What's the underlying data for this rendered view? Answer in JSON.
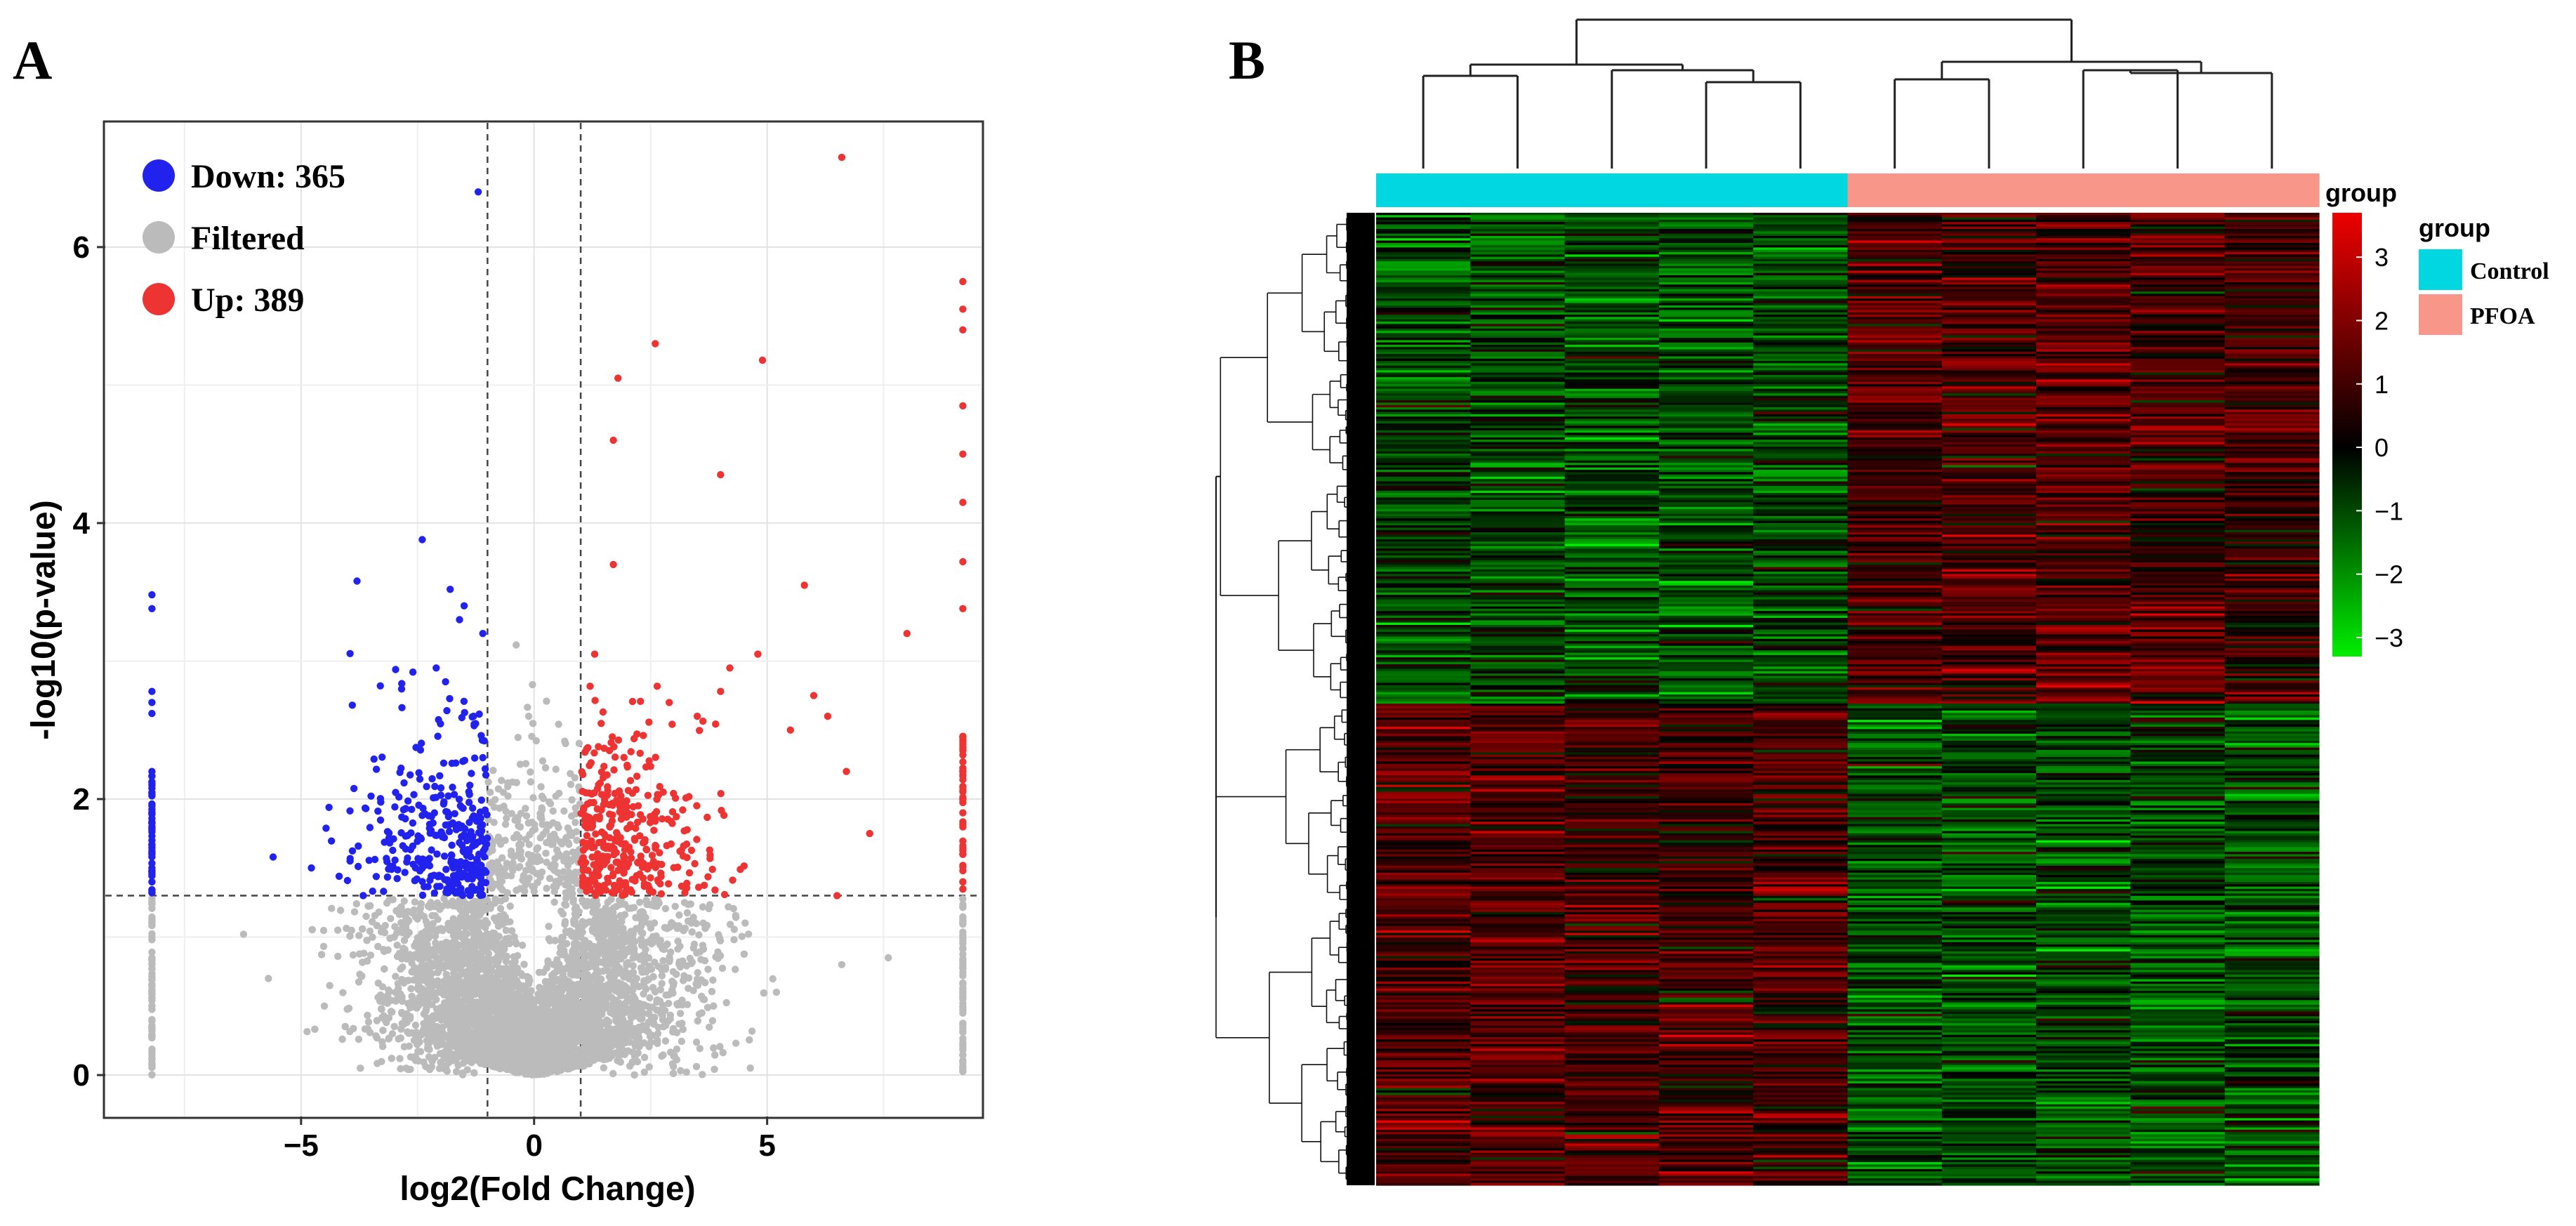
{
  "panel_a": {
    "letter": "A",
    "chart_data": {
      "type": "scatter",
      "title": "",
      "xlabel": "log2(Fold Change)",
      "ylabel": "-log10(p-value)",
      "xlim": [
        -9.2,
        9.6
      ],
      "ylim": [
        -0.3,
        6.9
      ],
      "xticks": [
        -5,
        0,
        5
      ],
      "xtick_labels": [
        "−5",
        "0",
        "5"
      ],
      "yticks": [
        0,
        2,
        4,
        6
      ],
      "ytick_labels": [
        "0",
        "2",
        "4",
        "6"
      ],
      "grid": true,
      "fold_change_thresholds": [
        -1,
        1
      ],
      "pvalue_threshold": 1.3,
      "legend_position": "top-left",
      "legend": [
        {
          "key": "down",
          "label": "Down: 365",
          "color": "#2222ee"
        },
        {
          "key": "filtered",
          "label": "Filtered",
          "color": "#bbbbbb"
        },
        {
          "key": "up",
          "label": "Up: 389",
          "color": "#ee3333"
        }
      ],
      "series": [
        {
          "name": "Down: 365",
          "color": "#2222ee",
          "points": [
            [
              -8.2,
              3.48
            ],
            [
              -8.2,
              3.38
            ],
            [
              -8.2,
              2.78
            ],
            [
              -8.2,
              2.7
            ],
            [
              -8.2,
              2.62
            ],
            [
              -8.2,
              2.2
            ],
            [
              -8.2,
              2.1
            ],
            [
              -8.2,
              1.95
            ],
            [
              -8.2,
              1.8
            ],
            [
              -8.2,
              1.7
            ],
            [
              -8.2,
              1.6
            ],
            [
              -8.2,
              1.5
            ],
            [
              -8.2,
              1.4
            ],
            [
              -8.2,
              1.32
            ],
            [
              -1.2,
              6.4
            ],
            [
              -2.4,
              3.88
            ],
            [
              -3.8,
              3.58
            ],
            [
              -1.8,
              3.52
            ],
            [
              -1.5,
              3.4
            ],
            [
              -1.6,
              3.3
            ],
            [
              -1.1,
              3.2
            ],
            [
              -3.9,
              2.68
            ],
            [
              -4.4,
              1.94
            ],
            [
              -5.6,
              1.58
            ],
            [
              -3.3,
              2.82
            ],
            [
              -2.6,
              2.92
            ],
            [
              -2.1,
              2.95
            ],
            [
              -1.9,
              2.85
            ],
            [
              -1.3,
              2.6
            ],
            [
              -1.1,
              2.3
            ]
          ]
        },
        {
          "name": "Filtered",
          "color": "#bbbbbb",
          "points": [
            [
              -8.2,
              1.1
            ],
            [
              -8.2,
              0.6
            ],
            [
              -8.2,
              0.15
            ],
            [
              9.2,
              1.1
            ],
            [
              9.2,
              0.6
            ],
            [
              9.2,
              0.1
            ],
            [
              -5.7,
              0.7
            ],
            [
              -4.5,
              0.5
            ],
            [
              -3.2,
              0.4
            ],
            [
              -2.0,
              0.8
            ],
            [
              -1.0,
              1.1
            ],
            [
              0.0,
              0.05
            ],
            [
              1.0,
              1.0
            ],
            [
              2.2,
              0.7
            ],
            [
              3.6,
              0.45
            ],
            [
              5.2,
              0.6
            ],
            [
              6.6,
              0.8
            ],
            [
              7.6,
              0.85
            ]
          ]
        },
        {
          "name": "Up: 389",
          "color": "#ee3333",
          "points": [
            [
              6.6,
              6.65
            ],
            [
              9.2,
              5.75
            ],
            [
              9.2,
              5.55
            ],
            [
              9.2,
              5.4
            ],
            [
              9.2,
              4.85
            ],
            [
              9.2,
              4.5
            ],
            [
              9.2,
              4.15
            ],
            [
              9.2,
              3.72
            ],
            [
              9.2,
              3.38
            ],
            [
              9.2,
              2.45
            ],
            [
              9.2,
              2.2
            ],
            [
              9.2,
              1.9
            ],
            [
              9.2,
              1.6
            ],
            [
              9.2,
              1.4
            ],
            [
              4.9,
              5.18
            ],
            [
              2.6,
              5.3
            ],
            [
              1.8,
              5.05
            ],
            [
              1.7,
              4.6
            ],
            [
              4.0,
              4.35
            ],
            [
              1.7,
              3.7
            ],
            [
              5.8,
              3.55
            ],
            [
              8.0,
              3.2
            ],
            [
              4.8,
              3.05
            ],
            [
              4.2,
              2.95
            ],
            [
              1.3,
              3.05
            ],
            [
              4.0,
              2.78
            ],
            [
              6.0,
              2.75
            ],
            [
              6.3,
              2.6
            ],
            [
              2.9,
              2.7
            ],
            [
              3.5,
              2.6
            ],
            [
              5.5,
              2.5
            ],
            [
              6.7,
              2.2
            ],
            [
              6.5,
              1.3
            ],
            [
              7.2,
              1.75
            ]
          ]
        }
      ]
    }
  },
  "panel_b": {
    "letter": "B",
    "chart_data": {
      "type": "heatmap",
      "title": "",
      "n_rows": 420,
      "n_cols": 10,
      "column_groups": [
        "Control",
        "Control",
        "Control",
        "Control",
        "Control",
        "PFOA",
        "PFOA",
        "PFOA",
        "PFOA",
        "PFOA"
      ],
      "annotation_label": "group",
      "legend_position": "right",
      "legend_title": "group",
      "legend": [
        {
          "label": "Control",
          "color": "#00d7e0"
        },
        {
          "label": "PFOA",
          "color": "#f8968a"
        }
      ],
      "color_scale": {
        "min": -3.3,
        "max": 3.7,
        "low_color": "#00ee00",
        "mid_color": "#000000",
        "high_color": "#ee0000",
        "ticks": [
          3,
          2,
          1,
          0,
          -1,
          -2,
          -3
        ],
        "tick_labels": [
          "3",
          "2",
          "1",
          "0",
          "−1",
          "−2",
          "−3"
        ]
      },
      "row_blocks": [
        {
          "rows": [
            0,
            212
          ],
          "values": [
            -0.9,
            -0.9,
            -0.9,
            -0.9,
            -0.9,
            0.9,
            0.9,
            1.0,
            0.9,
            0.7
          ]
        },
        {
          "rows": [
            212,
            420
          ],
          "values": [
            0.9,
            1.0,
            0.8,
            0.7,
            0.8,
            -0.9,
            -0.9,
            -0.9,
            -0.9,
            -0.9
          ]
        }
      ]
    }
  }
}
